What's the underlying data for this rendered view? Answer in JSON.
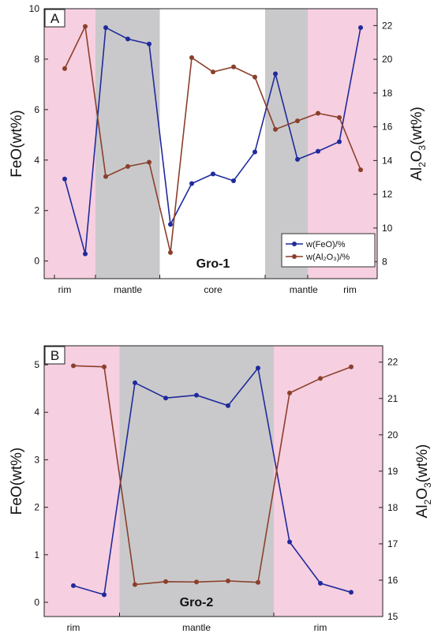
{
  "colors": {
    "feo": "#1f2a9c",
    "al2o3": "#8b3f2a",
    "rim_bg": "#f6cfe0",
    "mantle_bg": "#c9c9cb",
    "core_bg": "#ffffff"
  },
  "chart_data": [
    {
      "type": "line",
      "panel": "A",
      "sample": "Gro-1",
      "x_count": 16,
      "left_axis": {
        "label": "FeO(wt%)",
        "range": [
          -0.7,
          10
        ],
        "ticks": [
          0,
          2,
          4,
          6,
          8,
          10
        ]
      },
      "right_axis": {
        "label_main": "Al",
        "label_sub1": "2",
        "label_mid": "O",
        "label_sub2": "3",
        "label_end": "(wt%)",
        "range": [
          7,
          23
        ],
        "ticks": [
          8,
          10,
          12,
          14,
          16,
          18,
          20,
          22
        ]
      },
      "zones": [
        {
          "name": "rim",
          "from": 0.5,
          "to": 2.5,
          "bg": "rim"
        },
        {
          "name": "mantle",
          "from": 2.5,
          "to": 5.5,
          "bg": "mantle"
        },
        {
          "name": "core",
          "from": 5.5,
          "to": 10.5,
          "bg": "core"
        },
        {
          "name": "mantle",
          "from": 10.5,
          "to": 12.5,
          "bg": "mantle"
        },
        {
          "name": "rim",
          "from": 12.5,
          "to": 16.8,
          "bg": "rim"
        }
      ],
      "zone_labels": [
        {
          "text": "rim",
          "x": 1.0
        },
        {
          "text": "mantle",
          "x": 4.0
        },
        {
          "text": "core",
          "x": 8.0
        },
        {
          "text": "mantle",
          "x": 12.3
        },
        {
          "text": "rim",
          "x": 14.5
        }
      ],
      "series": [
        {
          "name": "w(FeO)/%",
          "axis": "left",
          "color_key": "feo",
          "values": [
            3.25,
            0.28,
            9.25,
            8.8,
            8.6,
            1.45,
            3.07,
            3.45,
            3.18,
            4.32,
            7.42,
            4.03,
            4.35,
            4.73,
            9.25
          ]
        },
        {
          "name": "w(Al2O3)/%",
          "axis": "right",
          "color_key": "al2o3",
          "values": [
            19.45,
            21.95,
            13.05,
            13.65,
            13.9,
            8.55,
            20.1,
            19.25,
            19.55,
            18.95,
            15.85,
            16.35,
            16.8,
            16.55,
            13.45
          ]
        }
      ],
      "legend": {
        "entries": [
          "w(FeO)/%",
          "w(Al₂O₃)/%"
        ],
        "position": "bottom-right"
      }
    },
    {
      "type": "line",
      "panel": "B",
      "sample": "Gro-2",
      "x_count": 12,
      "left_axis": {
        "label": "FeO(wt%)",
        "range": [
          -0.3,
          5.4
        ],
        "ticks": [
          0,
          1,
          2,
          3,
          4,
          5
        ]
      },
      "right_axis": {
        "label_main": "Al",
        "label_sub1": "2",
        "label_mid": "O",
        "label_sub2": "3",
        "label_end": "(wt%)",
        "range": [
          15,
          22.45
        ],
        "ticks": [
          15,
          16,
          17,
          18,
          19,
          20,
          21,
          22
        ]
      },
      "zones": [
        {
          "name": "rim",
          "from": 0.0,
          "to": 2.5,
          "bg": "rim"
        },
        {
          "name": "mantle",
          "from": 2.5,
          "to": 7.5,
          "bg": "mantle"
        },
        {
          "name": "rim",
          "from": 7.5,
          "to": 11.2,
          "bg": "rim"
        }
      ],
      "zone_labels": [
        {
          "text": "rim",
          "x": 1.0
        },
        {
          "text": "mantle",
          "x": 5.0
        },
        {
          "text": "rim",
          "x": 9.0
        }
      ],
      "series": [
        {
          "name": "w(FeO)/%",
          "axis": "left",
          "color_key": "feo",
          "values": [
            0.35,
            0.16,
            4.62,
            4.3,
            4.36,
            4.14,
            4.93,
            1.27,
            0.4,
            0.21
          ]
        },
        {
          "name": "w(Al2O3)/%",
          "axis": "right",
          "color_key": "al2o3",
          "values": [
            21.9,
            21.87,
            15.88,
            15.96,
            15.95,
            15.98,
            15.94,
            21.15,
            21.55,
            21.87
          ]
        }
      ]
    }
  ]
}
